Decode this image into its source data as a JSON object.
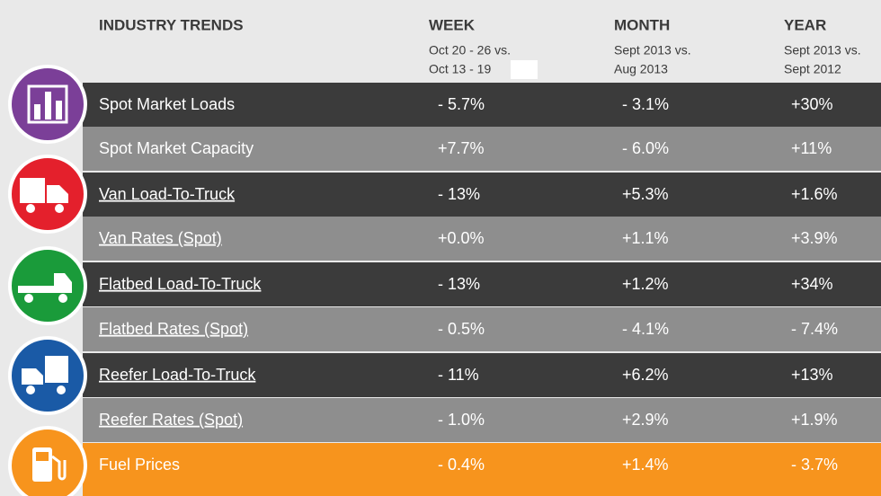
{
  "header": {
    "title": "INDUSTRY TRENDS",
    "columns": [
      {
        "title": "WEEK",
        "sub": [
          "Oct 20 - 26 vs.",
          "Oct 13 - 19"
        ]
      },
      {
        "title": "MONTH",
        "sub": [
          "Sept 2013 vs.",
          "Aug 2013"
        ]
      },
      {
        "title": "YEAR",
        "sub": [
          "Sept 2013 vs.",
          "Sept 2012"
        ]
      }
    ]
  },
  "table": {
    "rows": [
      [
        "Spot Market Loads",
        "- 5.7%",
        "- 3.1%",
        "+30%"
      ],
      [
        "Spot Market Capacity",
        "+7.7%",
        "- 6.0%",
        "+11%"
      ],
      [
        "Van Load-To-Truck",
        "- 13%",
        "+5.3%",
        "+1.6%"
      ],
      [
        "Van Rates (Spot)",
        "+0.0%",
        "+1.1%",
        "+3.9%"
      ],
      [
        "Flatbed Load-To-Truck",
        "- 13%",
        "+1.2%",
        "+34%"
      ],
      [
        "Flatbed Rates (Spot)",
        "- 0.5%",
        "- 4.1%",
        "- 7.4%"
      ],
      [
        "Reefer Load-To-Truck",
        "- 11%",
        "+6.2%",
        "+13%"
      ],
      [
        "Reefer Rates (Spot)",
        "- 1.0%",
        "+2.9%",
        "+1.9%"
      ],
      [
        "Fuel Prices",
        "- 0.4%",
        "+1.4%",
        "- 3.7%"
      ]
    ]
  }
}
